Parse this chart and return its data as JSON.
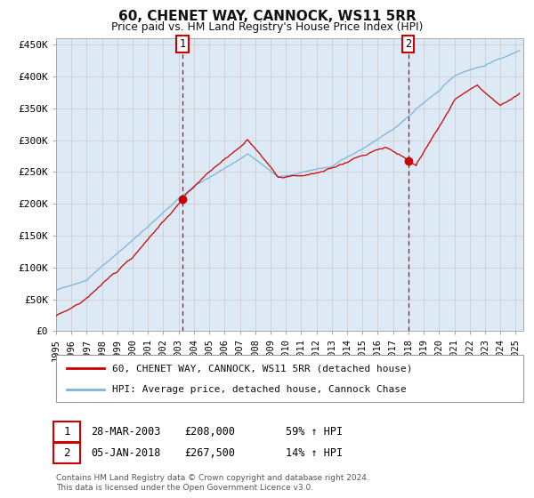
{
  "title": "60, CHENET WAY, CANNOCK, WS11 5RR",
  "subtitle": "Price paid vs. HM Land Registry's House Price Index (HPI)",
  "legend_line1": "60, CHENET WAY, CANNOCK, WS11 5RR (detached house)",
  "legend_line2": "HPI: Average price, detached house, Cannock Chase",
  "transaction1_date": "28-MAR-2003",
  "transaction1_price": 208000,
  "transaction1_hpi": "59% ↑ HPI",
  "transaction2_date": "05-JAN-2018",
  "transaction2_price": 267500,
  "transaction2_hpi": "14% ↑ HPI",
  "transaction1_x": 2003.23,
  "transaction2_x": 2018.02,
  "hpi_color": "#7ab3d8",
  "price_color": "#cc0000",
  "marker_color": "#cc0000",
  "dashed_line_color": "#cc0000",
  "bg_color": "#ddeaf6",
  "grid_color": "#c8c8c8",
  "ylim": [
    0,
    460000
  ],
  "xlim_start": 1995.0,
  "xlim_end": 2025.5,
  "footer": "Contains HM Land Registry data © Crown copyright and database right 2024.\nThis data is licensed under the Open Government Licence v3.0.",
  "yticks": [
    0,
    50000,
    100000,
    150000,
    200000,
    250000,
    300000,
    350000,
    400000,
    450000
  ],
  "ytick_labels": [
    "£0",
    "£50K",
    "£100K",
    "£150K",
    "£200K",
    "£250K",
    "£300K",
    "£350K",
    "£400K",
    "£450K"
  ],
  "xtick_years": [
    1995,
    1996,
    1997,
    1998,
    1999,
    2000,
    2001,
    2002,
    2003,
    2004,
    2005,
    2006,
    2007,
    2008,
    2009,
    2010,
    2011,
    2012,
    2013,
    2014,
    2015,
    2016,
    2017,
    2018,
    2019,
    2020,
    2021,
    2022,
    2023,
    2024,
    2025
  ]
}
